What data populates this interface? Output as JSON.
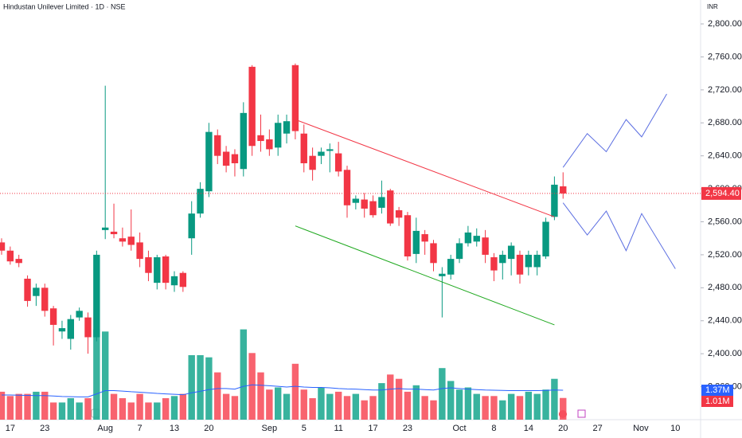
{
  "chart_data": {
    "type": "candlestick",
    "title": "Hindustan Unilever Limited · 1D · NSE",
    "currency": "INR",
    "categories": [
      null,
      "17",
      null,
      null,
      null,
      "23",
      null,
      null,
      null,
      null,
      null,
      null,
      "Aug",
      null,
      null,
      null,
      "7",
      null,
      null,
      null,
      "13",
      null,
      null,
      null,
      "20",
      null,
      null,
      null,
      null,
      null,
      null,
      "Sep",
      null,
      null,
      null,
      "5",
      null,
      null,
      null,
      "11",
      null,
      null,
      null,
      "17",
      null,
      null,
      null,
      "23",
      null,
      null,
      null,
      null,
      null,
      "Oct",
      null,
      null,
      null,
      "8",
      null,
      null,
      null,
      "14",
      null,
      null,
      null,
      "20",
      null,
      null,
      null,
      "27",
      null,
      null,
      null,
      null,
      "Nov",
      null,
      null,
      null,
      "10"
    ],
    "open": [
      2535,
      2525,
      2515,
      2491,
      2470,
      2480,
      2455,
      2427,
      2418,
      2444,
      2444,
      2420,
      2550,
      2548,
      2540,
      2542,
      2535,
      2517,
      2486,
      2518,
      2483,
      2498,
      2540,
      2570,
      2597,
      2665,
      2645,
      2642,
      2624,
      2748,
      2665,
      2660,
      2650,
      2667,
      2750,
      2667,
      2640,
      2640,
      2646,
      2643,
      2623,
      2583,
      2587,
      2585,
      2577,
      2598,
      2574,
      2568,
      2521,
      2545,
      2534,
      2494,
      2496,
      2515,
      2534,
      2536,
      2541,
      2517,
      2510,
      2515,
      2520,
      2505,
      2505,
      2518,
      2566,
      2603,
      null,
      null,
      null,
      null,
      null,
      null,
      null,
      null,
      null,
      null,
      null,
      null,
      null
    ],
    "high": [
      2540,
      2530,
      2520,
      2495,
      2485,
      2485,
      2458,
      2440,
      2447,
      2456,
      2450,
      2525,
      2725,
      2582,
      2553,
      2575,
      2547,
      2525,
      2520,
      2520,
      2500,
      2500,
      2585,
      2608,
      2680,
      2672,
      2652,
      2648,
      2705,
      2750,
      2690,
      2672,
      2690,
      2690,
      2752,
      2678,
      2650,
      2650,
      2655,
      2657,
      2628,
      2592,
      2595,
      2592,
      2610,
      2600,
      2578,
      2572,
      2565,
      2550,
      2538,
      2505,
      2520,
      2540,
      2555,
      2552,
      2550,
      2522,
      2525,
      2535,
      2525,
      2525,
      2525,
      2565,
      2615,
      2620,
      null,
      null,
      null,
      null,
      null,
      null,
      null,
      null,
      null,
      null,
      null,
      null,
      null
    ],
    "low": [
      2520,
      2508,
      2505,
      2457,
      2458,
      2445,
      2410,
      2418,
      2405,
      2440,
      2400,
      2415,
      2539,
      2540,
      2530,
      2525,
      2505,
      2488,
      2478,
      2478,
      2475,
      2475,
      2520,
      2565,
      2590,
      2630,
      2620,
      2615,
      2615,
      2640,
      2645,
      2640,
      2640,
      2655,
      2660,
      2620,
      2610,
      2630,
      2620,
      2615,
      2565,
      2575,
      2565,
      2565,
      2570,
      2555,
      2555,
      2513,
      2510,
      2520,
      2500,
      2444,
      2490,
      2510,
      2530,
      2530,
      2510,
      2488,
      2490,
      2495,
      2485,
      2495,
      2495,
      2515,
      2562,
      2588,
      null,
      null,
      null,
      null,
      null,
      null,
      null,
      null,
      null,
      null,
      null,
      null,
      null
    ],
    "close": [
      2525,
      2512,
      2510,
      2464,
      2480,
      2452,
      2435,
      2431,
      2442,
      2452,
      2420,
      2520,
      2553,
      2545,
      2536,
      2532,
      2515,
      2498,
      2517,
      2486,
      2494,
      2481,
      2570,
      2600,
      2669,
      2640,
      2628,
      2631,
      2692,
      2652,
      2658,
      2648,
      2680,
      2682,
      2670,
      2631,
      2623,
      2645,
      2648,
      2621,
      2580,
      2588,
      2576,
      2568,
      2590,
      2558,
      2565,
      2518,
      2549,
      2536,
      2510,
      2497,
      2515,
      2534,
      2547,
      2543,
      2520,
      2501,
      2520,
      2531,
      2496,
      2520,
      2520,
      2560,
      2605,
      2594.4,
      null,
      null,
      null,
      null,
      null,
      null,
      null,
      null,
      null,
      null,
      null,
      null,
      null
    ],
    "volume": [
      1.3,
      1.1,
      1.2,
      1.2,
      1.3,
      1.3,
      0.8,
      0.8,
      1.0,
      0.8,
      1.0,
      4.2,
      4.1,
      1.2,
      1.0,
      0.8,
      1.2,
      0.8,
      0.8,
      1.0,
      1.1,
      1.2,
      3.0,
      3.0,
      2.9,
      2.2,
      1.2,
      1.1,
      4.2,
      3.1,
      2.2,
      1.4,
      1.5,
      1.2,
      2.6,
      1.4,
      1.0,
      1.5,
      1.2,
      1.3,
      1.1,
      1.2,
      0.9,
      1.1,
      1.7,
      2.1,
      1.9,
      1.3,
      1.6,
      1.1,
      0.9,
      2.4,
      1.8,
      1.4,
      1.5,
      1.2,
      1.1,
      1.1,
      0.9,
      1.2,
      1.1,
      1.3,
      1.2,
      1.4,
      1.9,
      1.01,
      null,
      null,
      null,
      null,
      null,
      null,
      null,
      null,
      null,
      null,
      null,
      null,
      null
    ],
    "volume_ma": [
      1.15,
      1.15,
      1.14,
      1.13,
      1.12,
      1.12,
      1.1,
      1.08,
      1.07,
      1.06,
      1.06,
      1.2,
      1.35,
      1.35,
      1.33,
      1.3,
      1.28,
      1.25,
      1.22,
      1.2,
      1.18,
      1.16,
      1.25,
      1.32,
      1.4,
      1.45,
      1.45,
      1.42,
      1.55,
      1.62,
      1.6,
      1.58,
      1.55,
      1.52,
      1.55,
      1.52,
      1.5,
      1.5,
      1.48,
      1.45,
      1.43,
      1.42,
      1.4,
      1.38,
      1.38,
      1.42,
      1.45,
      1.42,
      1.42,
      1.4,
      1.38,
      1.45,
      1.48,
      1.45,
      1.42,
      1.4,
      1.38,
      1.37,
      1.36,
      1.35,
      1.35,
      1.35,
      1.35,
      1.36,
      1.38,
      1.37,
      null,
      null,
      null,
      null,
      null,
      null,
      null,
      null,
      null,
      null,
      null,
      null,
      null
    ],
    "up_color": "#089981",
    "down_color": "#f23645",
    "volume_up_color": "#22ab94",
    "volume_down_color": "#f7525f",
    "volume_ma_color": "#2962ff",
    "ylim": [
      2320,
      2829
    ],
    "yticks": [
      {
        "value": 2360,
        "label": "2,360.00"
      },
      {
        "value": 2400,
        "label": "2,400.00"
      },
      {
        "value": 2440,
        "label": "2,440.00"
      },
      {
        "value": 2480,
        "label": "2,480.00"
      },
      {
        "value": 2520,
        "label": "2,520.00"
      },
      {
        "value": 2560,
        "label": "2,560.00"
      },
      {
        "value": 2600,
        "label": "2,600.00"
      },
      {
        "value": 2640,
        "label": "2,640.00"
      },
      {
        "value": 2680,
        "label": "2,680.00"
      },
      {
        "value": 2720,
        "label": "2,720.00"
      },
      {
        "value": 2760,
        "label": "2,760.00"
      },
      {
        "value": 2800,
        "label": "2,800.00"
      }
    ],
    "volume_ylim": [
      0,
      5
    ],
    "grid": false,
    "last_price": {
      "value": 2594.4,
      "label": "2,594.40"
    },
    "volume_ma_last": {
      "value": 1.37,
      "label": "1.37M"
    },
    "volume_last": {
      "value": 1.01,
      "label": "1.01M"
    },
    "trend_lines": [
      {
        "color": "#f23645",
        "x": [
          34,
          64
        ],
        "y": [
          2684,
          2566
        ]
      },
      {
        "color": "#1ea81e",
        "x": [
          34,
          64
        ],
        "y": [
          2555,
          2435
        ]
      },
      {
        "color": "#5b6ee1",
        "x": [
          65,
          67.8,
          70,
          72.3,
          74.1,
          77
        ],
        "y": [
          2626,
          2667,
          2645,
          2684,
          2663,
          2715
        ]
      },
      {
        "color": "#5b6ee1",
        "x": [
          65,
          67.8,
          70,
          72.3,
          74.1,
          78
        ],
        "y": [
          2583,
          2544,
          2573,
          2525,
          2570,
          2503
        ]
      }
    ]
  }
}
